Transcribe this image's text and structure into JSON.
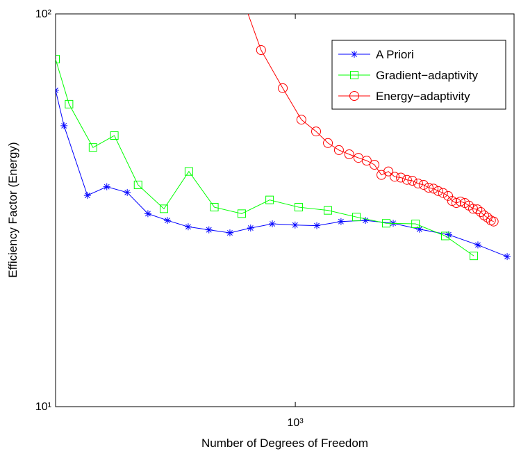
{
  "chart_data": {
    "type": "line",
    "xlabel": "Number of Degrees of Freedom",
    "ylabel": "Efficiency Factor (Energy)",
    "xlog": true,
    "ylog": true,
    "xlim": [
      300,
      3000
    ],
    "ylim": [
      10,
      100
    ],
    "xticks": [
      {
        "value": 1000,
        "label": "10³"
      }
    ],
    "yticks": [
      {
        "value": 10,
        "label": "10¹"
      },
      {
        "value": 100,
        "label": "10²"
      }
    ],
    "legend": "upper right",
    "series": [
      {
        "name": "A Priori",
        "color": "#0000ff",
        "marker": "star",
        "x": [
          300,
          313,
          352,
          388,
          430,
          477,
          526,
          584,
          648,
          720,
          799,
          891,
          999,
          1114,
          1258,
          1422,
          1635,
          1866,
          2160,
          2502,
          2898
        ],
        "values": [
          63.9,
          51.9,
          34.5,
          36.3,
          35.1,
          31.0,
          29.8,
          28.7,
          28.2,
          27.7,
          28.5,
          29.2,
          29.0,
          28.9,
          29.6,
          29.8,
          29.3,
          28.3,
          27.4,
          25.8,
          24.1
        ]
      },
      {
        "name": "Gradient−adaptivity",
        "color": "#00ff00",
        "marker": "square",
        "x": [
          300,
          321,
          362,
          403,
          454,
          517,
          586,
          666,
          764,
          879,
          1017,
          1178,
          1359,
          1579,
          1829,
          2124,
          2451
        ],
        "values": [
          76.7,
          58.9,
          45.7,
          49.0,
          36.7,
          31.9,
          39.7,
          32.2,
          31.0,
          33.6,
          32.2,
          31.6,
          30.4,
          29.3,
          29.2,
          27.2,
          24.2
        ]
      },
      {
        "name": "Energy−adaptivity",
        "color": "#ff0000",
        "marker": "circle",
        "x": [
          766,
          842,
          939,
          1031,
          1110,
          1178,
          1245,
          1311,
          1373,
          1431,
          1488,
          1541,
          1596,
          1647,
          1699,
          1752,
          1800,
          1853,
          1905,
          1953,
          2002,
          2050,
          2100,
          2154,
          2198,
          2245,
          2292,
          2343,
          2391,
          2442,
          2495,
          2538,
          2581,
          2625,
          2671,
          2708
        ],
        "values": [
          110,
          80.9,
          64.7,
          53.8,
          50.2,
          46.9,
          45.0,
          43.9,
          43.0,
          42.3,
          41.3,
          38.9,
          39.7,
          38.5,
          38.3,
          37.8,
          37.6,
          37.0,
          36.7,
          36.1,
          35.9,
          35.4,
          35.0,
          34.4,
          33.4,
          33.0,
          33.3,
          33.0,
          32.5,
          31.9,
          31.8,
          31.3,
          30.7,
          30.3,
          29.8,
          29.6
        ]
      }
    ]
  }
}
